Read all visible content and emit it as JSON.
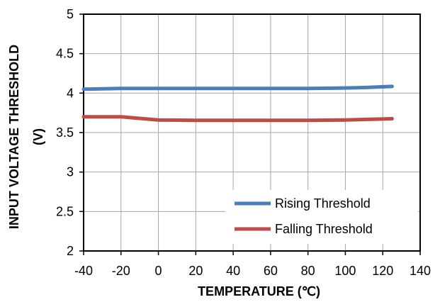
{
  "chart_data": {
    "type": "line",
    "xlabel": "TEMPERATURE  (℃)",
    "ylabel_line1": "INPUT  VOLTAGE  THRESHOLD",
    "ylabel_line2": "(V)",
    "xlim": [
      -40,
      140
    ],
    "ylim": [
      2,
      5
    ],
    "xticks": [
      "-40",
      "-20",
      "0",
      "20",
      "40",
      "60",
      "80",
      "100",
      "120",
      "140"
    ],
    "yticks": [
      "2",
      "2.5",
      "3",
      "3.5",
      "4",
      "4.5",
      "5"
    ],
    "grid": true,
    "legend_position": "bottom-right",
    "series": [
      {
        "name": "Rising Threshold",
        "color": "#4a7ebb",
        "x": [
          -40,
          -20,
          0,
          20,
          40,
          60,
          80,
          100,
          110,
          125
        ],
        "y": [
          4.05,
          4.06,
          4.06,
          4.06,
          4.06,
          4.06,
          4.06,
          4.065,
          4.07,
          4.085
        ]
      },
      {
        "name": "Falling Threshold",
        "color": "#be4b48",
        "x": [
          -40,
          -20,
          -10,
          0,
          20,
          40,
          60,
          80,
          100,
          125
        ],
        "y": [
          3.7,
          3.7,
          3.68,
          3.66,
          3.655,
          3.655,
          3.655,
          3.655,
          3.66,
          3.675
        ]
      }
    ]
  }
}
